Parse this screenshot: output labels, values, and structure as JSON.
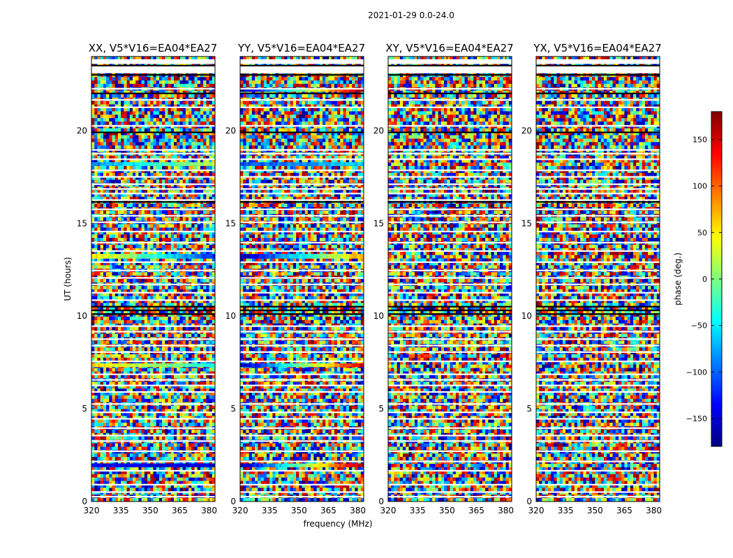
{
  "figure": {
    "suptitle": "2021-01-29 0.0-24.0",
    "xlabel": "frequency (MHz)",
    "ylabel": "UT (hours)"
  },
  "colorbar": {
    "label": "phase (deg.)",
    "range": [
      -180,
      180
    ],
    "ticks": [
      -150,
      -100,
      -50,
      0,
      50,
      100,
      150
    ],
    "tick_labels": [
      "−150",
      "−100",
      "−50",
      "0",
      "50",
      "100",
      "150"
    ],
    "colormap": [
      "#00007f",
      "#0000ff",
      "#007fff",
      "#00ffff",
      "#7fff7f",
      "#ffff00",
      "#ff7f00",
      "#ff0000",
      "#7f0000"
    ],
    "bottom_marker": "....."
  },
  "chart_data": [
    {
      "type": "heatmap",
      "title": "XX, V5*V16=EA04*EA27",
      "xlim": [
        320,
        383
      ],
      "ylim": [
        0,
        24
      ],
      "xticks": [
        320,
        335,
        350,
        365,
        380
      ],
      "yticks": [
        0,
        5,
        10,
        15,
        20
      ],
      "value": "phase (deg.)",
      "note": "mostly random phase noise with horizontal flagged (white) gaps; coherent bands near UT 2, 7.3, 13.2 and 18.2 h",
      "coherent_bands": [
        {
          "ut": [
            1.85,
            2.05
          ],
          "phase_start": -140,
          "phase_end": -150
        },
        {
          "ut": [
            7.25,
            7.45
          ],
          "phase_start": 60,
          "phase_end": -40
        },
        {
          "ut": [
            13.1,
            13.35
          ],
          "phase_start": 60,
          "phase_end": -120
        },
        {
          "ut": [
            18.1,
            18.3
          ],
          "phase_start": -90,
          "phase_end": 20
        }
      ]
    },
    {
      "type": "heatmap",
      "title": "YY, V5*V16=EA04*EA27",
      "xlim": [
        320,
        383
      ],
      "ylim": [
        0,
        24
      ],
      "xticks": [
        320,
        335,
        350,
        365,
        380
      ],
      "yticks": [
        0,
        5,
        10,
        15,
        20
      ],
      "value": "phase (deg.)",
      "note": "phase wraps across frequency in coherent bands near UT 2, 7.3, 13.2 and 18.2 h",
      "coherent_bands": [
        {
          "ut": [
            1.85,
            2.05
          ],
          "phase_start": -170,
          "phase_end": 170
        },
        {
          "ut": [
            7.25,
            7.45
          ],
          "phase_start": -160,
          "phase_end": 150
        },
        {
          "ut": [
            13.1,
            13.35
          ],
          "phase_start": -170,
          "phase_end": 80
        },
        {
          "ut": [
            18.1,
            18.3
          ],
          "phase_start": -110,
          "phase_end": -60
        },
        {
          "ut": [
            22.1,
            22.25
          ],
          "phase_start": -170,
          "phase_end": 170
        }
      ]
    },
    {
      "type": "heatmap",
      "title": "XY, V5*V16=EA04*EA27",
      "xlim": [
        320,
        383
      ],
      "ylim": [
        0,
        24
      ],
      "xticks": [
        320,
        335,
        350,
        365,
        380
      ],
      "yticks": [
        0,
        5,
        10,
        15,
        20
      ],
      "value": "phase (deg.)",
      "note": "cross-hand; nearly pure phase noise with horizontal flagged gaps",
      "coherent_bands": []
    },
    {
      "type": "heatmap",
      "title": "YX, V5*V16=EA04*EA27",
      "xlim": [
        320,
        383
      ],
      "ylim": [
        0,
        24
      ],
      "xticks": [
        320,
        335,
        350,
        365,
        380
      ],
      "yticks": [
        0,
        5,
        10,
        15,
        20
      ],
      "value": "phase (deg.)",
      "note": "cross-hand; nearly pure phase noise with horizontal flagged gaps",
      "coherent_bands": []
    }
  ]
}
